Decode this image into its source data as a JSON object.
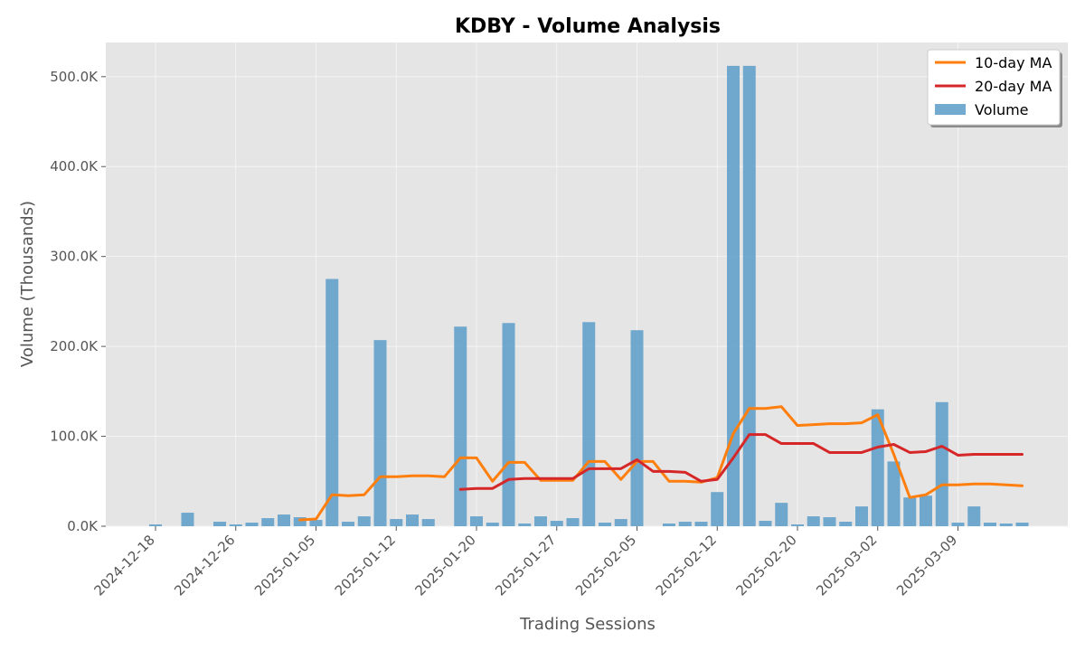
{
  "chart_data": {
    "type": "bar",
    "title": "KDBY - Volume Analysis",
    "xlabel": "Trading Sessions",
    "ylabel": "Volume (Thousands)",
    "ylim": [
      0,
      538
    ],
    "y_ticks": [
      0,
      100,
      200,
      300,
      400,
      500
    ],
    "y_tick_labels": [
      "0.0K",
      "100.0K",
      "200.0K",
      "300.0K",
      "400.0K",
      "500.0K"
    ],
    "x_tick_labels": [
      "2024-12-18",
      "2024-12-26",
      "2025-01-05",
      "2025-01-12",
      "2025-01-20",
      "2025-01-27",
      "2025-02-05",
      "2025-02-12",
      "2025-02-20",
      "2025-03-02",
      "2025-03-09"
    ],
    "x_tick_sessions": [
      0,
      5,
      10,
      15,
      20,
      25,
      30,
      35,
      40,
      45,
      50
    ],
    "grid": true,
    "legend_position": "top-right",
    "colors": {
      "volume": "#5f9ec9",
      "ma10": "#ff7f0e",
      "ma20": "#d62728",
      "plot_bg": "#e5e5e5",
      "grid": "#f4f4f4"
    },
    "series": [
      {
        "name": "Volume",
        "type": "bar",
        "values": [
          2,
          0,
          15,
          0,
          5,
          2,
          4,
          9,
          13,
          10,
          7,
          275,
          5,
          11,
          207,
          8,
          13,
          8,
          0,
          222,
          11,
          4,
          226,
          3,
          11,
          6,
          9,
          227,
          4,
          8,
          218,
          0,
          3,
          5,
          5,
          38,
          512,
          512,
          6,
          26,
          2,
          11,
          10,
          5,
          22,
          130,
          72,
          32,
          34,
          138,
          4,
          22,
          4,
          3,
          4
        ]
      },
      {
        "name": "10-day MA",
        "type": "line",
        "values": [
          null,
          null,
          null,
          null,
          null,
          null,
          null,
          null,
          null,
          7,
          8,
          35,
          34,
          35,
          55,
          55,
          56,
          56,
          55,
          76,
          76,
          50,
          71,
          71,
          51,
          51,
          51,
          72,
          72,
          52,
          72,
          72,
          50,
          50,
          49,
          54,
          103,
          131,
          131,
          133,
          112,
          113,
          114,
          114,
          115,
          124,
          80,
          32,
          35,
          46,
          46,
          47,
          47,
          46,
          45
        ]
      },
      {
        "name": "20-day MA",
        "type": "line",
        "values": [
          null,
          null,
          null,
          null,
          null,
          null,
          null,
          null,
          null,
          null,
          null,
          null,
          null,
          null,
          null,
          null,
          null,
          null,
          null,
          41,
          42,
          42,
          52,
          53,
          53,
          53,
          53,
          64,
          64,
          64,
          74,
          61,
          61,
          60,
          50,
          52,
          76,
          102,
          102,
          92,
          92,
          92,
          82,
          82,
          82,
          88,
          91,
          82,
          83,
          89,
          79,
          80,
          80,
          80,
          80
        ]
      }
    ]
  }
}
